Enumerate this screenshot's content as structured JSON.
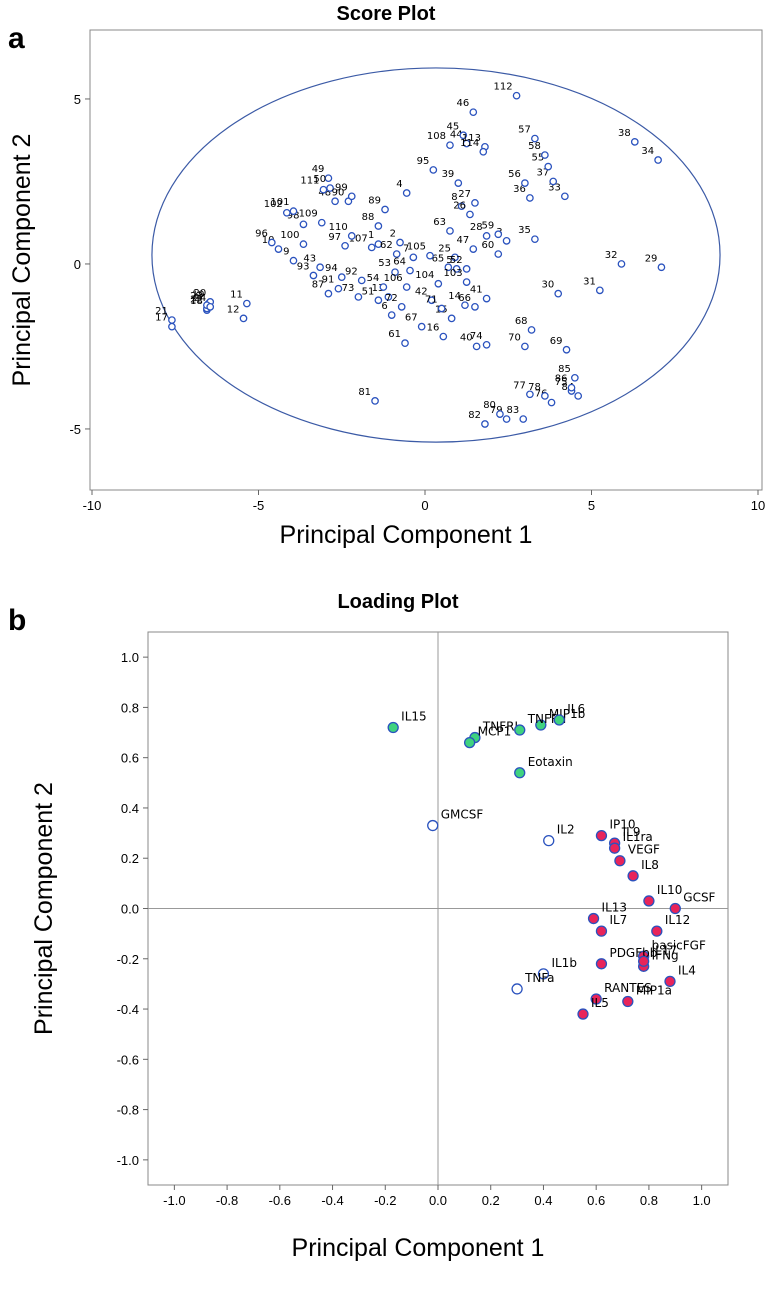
{
  "chart_data": [
    {
      "type": "scatter",
      "panel": "a",
      "title": "Score Plot",
      "xlabel": "Principal Component 1",
      "ylabel": "Principal Component 2",
      "xlim": [
        -10.06,
        10.12
      ],
      "ylim": [
        -6.85,
        7.09
      ],
      "xticks": [
        -10,
        -5,
        0,
        5,
        10
      ],
      "yticks": [
        -5,
        0,
        5
      ],
      "ellipse": {
        "cx": 0.33,
        "cy": 0.27,
        "rx": 8.53,
        "ry": 5.67,
        "color": "#3b5aa6"
      },
      "series": [
        {
          "color": "#2a52be",
          "fill": "#ffffff",
          "labels": [
            "1",
            "2",
            "3",
            "4",
            "5",
            "6",
            "7",
            "8",
            "9",
            "10",
            "11",
            "12",
            "13",
            "14",
            "15",
            "16",
            "17",
            "18",
            "19",
            "20",
            "21",
            "22",
            "23",
            "24",
            "25",
            "26",
            "27",
            "28",
            "29",
            "30",
            "31",
            "32",
            "33",
            "34",
            "35",
            "36",
            "37",
            "38",
            "39",
            "40",
            "41",
            "42",
            "43",
            "44",
            "45",
            "46",
            "47",
            "48",
            "49",
            "50",
            "51",
            "52",
            "53",
            "54",
            "55",
            "56",
            "57",
            "58",
            "59",
            "60",
            "61",
            "62",
            "63",
            "64",
            "65",
            "66",
            "67",
            "68",
            "69",
            "70",
            "71",
            "72",
            "73",
            "74",
            "75",
            "76",
            "77",
            "78",
            "79",
            "80",
            "81",
            "82",
            "83",
            "84",
            "85",
            "86",
            "87",
            "88",
            "89",
            "90",
            "91",
            "92",
            "93",
            "94",
            "95",
            "96",
            "97",
            "98",
            "99",
            "100",
            "101",
            "102",
            "103",
            "104",
            "105",
            "106",
            "107",
            "108",
            "109",
            "110",
            "111",
            "112",
            "113",
            "114"
          ],
          "x": [
            -1.4,
            -0.75,
            2.45,
            -0.55,
            0.95,
            -1.0,
            -0.35,
            1.1,
            -3.95,
            -4.4,
            -5.35,
            -5.45,
            -1.1,
            1.2,
            0.8,
            0.55,
            -7.6,
            -6.55,
            -6.5,
            -6.45,
            -7.6,
            -6.55,
            -6.55,
            -6.45,
            0.9,
            1.35,
            1.5,
            1.85,
            7.1,
            4.0,
            5.25,
            5.9,
            4.2,
            7.0,
            3.3,
            3.15,
            3.85,
            6.3,
            1.0,
            1.55,
            1.85,
            0.2,
            -3.15,
            1.25,
            1.15,
            1.45,
            1.45,
            -2.7,
            -2.9,
            -2.85,
            -1.4,
            1.25,
            -0.9,
            -1.25,
            3.7,
            3.0,
            3.3,
            3.6,
            2.2,
            2.2,
            -0.6,
            -0.85,
            0.75,
            -0.45,
            0.7,
            1.5,
            -0.1,
            3.2,
            4.25,
            3.0,
            0.5,
            -0.7,
            -2.0,
            1.85,
            4.4,
            3.8,
            3.15,
            3.6,
            2.45,
            2.25,
            -1.5,
            1.8,
            2.95,
            4.6,
            4.5,
            4.4,
            -2.9,
            -1.4,
            -1.2,
            -2.3,
            -2.6,
            -1.9,
            -3.35,
            -2.5,
            0.25,
            -4.6,
            -2.4,
            -3.65,
            -2.2,
            -3.65,
            -3.95,
            -4.15,
            1.25,
            0.4,
            0.15,
            -0.55,
            -1.6,
            0.75,
            -3.1,
            -2.2,
            -3.05,
            2.75,
            1.8,
            1.75
          ],
          "y": [
            0.6,
            0.65,
            0.7,
            2.15,
            -0.15,
            -1.55,
            0.2,
            1.75,
            0.1,
            0.45,
            -1.2,
            -1.65,
            -1.0,
            -1.25,
            -1.65,
            -2.2,
            -1.9,
            -1.4,
            -1.2,
            -1.15,
            -1.7,
            -1.35,
            -1.25,
            -1.3,
            0.2,
            1.5,
            1.85,
            0.85,
            -0.1,
            -0.9,
            -0.8,
            0.0,
            2.05,
            3.15,
            0.75,
            2.0,
            2.5,
            3.7,
            2.45,
            -2.5,
            -1.05,
            -1.1,
            -0.1,
            3.65,
            3.9,
            4.6,
            0.45,
            1.9,
            2.6,
            2.3,
            -1.1,
            -0.15,
            -0.25,
            -0.7,
            2.95,
            2.45,
            3.8,
            3.3,
            0.9,
            0.3,
            -2.4,
            0.3,
            1.0,
            -0.2,
            -0.1,
            -1.3,
            -1.9,
            -2.0,
            -2.6,
            -2.5,
            -1.35,
            -1.3,
            -1.0,
            -2.45,
            -3.85,
            -4.2,
            -3.95,
            -4.0,
            -4.7,
            -4.55,
            -4.15,
            -4.85,
            -4.7,
            -4.0,
            -3.45,
            -3.75,
            -0.9,
            1.15,
            1.65,
            1.9,
            -0.75,
            -0.5,
            -0.35,
            -0.4,
            2.85,
            0.65,
            0.55,
            1.2,
            2.05,
            0.6,
            1.6,
            1.55,
            -0.55,
            -0.6,
            0.25,
            -0.7,
            0.5,
            3.6,
            1.25,
            0.85,
            2.25,
            5.1,
            3.55,
            3.4
          ]
        }
      ]
    },
    {
      "type": "scatter",
      "panel": "b",
      "title": "Loading Plot",
      "xlabel": "Principal Component 1",
      "ylabel": "Principal Component 2",
      "xlim": [
        -1.1,
        1.1
      ],
      "ylim": [
        -1.1,
        1.1
      ],
      "zero_lines": true,
      "xticks": [
        {
          "value": -1,
          "label": "-1.0"
        },
        -0.8,
        -0.6,
        -0.4,
        -0.2,
        {
          "value": 0,
          "label": "0.0"
        },
        0.2,
        0.4,
        0.6,
        0.8,
        {
          "value": 1,
          "label": "1.0"
        }
      ],
      "yticks": [
        {
          "value": -1,
          "label": "-1.0"
        },
        -0.8,
        -0.6,
        -0.4,
        -0.2,
        {
          "value": 0,
          "label": "0.0"
        },
        0.2,
        0.4,
        0.6,
        0.8,
        {
          "value": 1,
          "label": "1.0"
        }
      ],
      "series": [
        {
          "color": "#2a52be",
          "fill": "#3fd27f",
          "labels": [
            "IL15",
            "TNFRI",
            "MCP1",
            "MIP1b",
            "TNFRII",
            "IL6",
            "Eotaxin"
          ],
          "x": [
            -0.17,
            0.14,
            0.12,
            0.39,
            0.31,
            0.46,
            0.31
          ],
          "y": [
            0.72,
            0.68,
            0.66,
            0.73,
            0.71,
            0.75,
            0.54
          ]
        },
        {
          "color": "#2a52be",
          "fill": "#ffffff",
          "labels": [
            "GMCSF",
            "IL2",
            "IL1b",
            "TNFa"
          ],
          "x": [
            -0.02,
            0.42,
            0.4,
            0.3
          ],
          "y": [
            0.33,
            0.27,
            -0.26,
            -0.32
          ]
        },
        {
          "color": "#2a52be",
          "fill": "#e8245a",
          "labels": [
            "IP10",
            "IL9",
            "IL1ra",
            "VEGF",
            "IL8",
            "IL10",
            "GCSF",
            "IL13",
            "IL7",
            "IL12",
            "basicFGF",
            "PDGFbb",
            "IFNg",
            "IL17",
            "IL4",
            "RANTES",
            "MIP1a",
            "IL5"
          ],
          "x": [
            0.62,
            0.67,
            0.67,
            0.69,
            0.74,
            0.8,
            0.9,
            0.59,
            0.62,
            0.83,
            0.78,
            0.62,
            0.78,
            0.78,
            0.88,
            0.6,
            0.72,
            0.55
          ],
          "y": [
            0.29,
            0.26,
            0.24,
            0.19,
            0.13,
            0.03,
            0.0,
            -0.04,
            -0.09,
            -0.09,
            -0.19,
            -0.22,
            -0.23,
            -0.21,
            -0.29,
            -0.36,
            -0.37,
            -0.42
          ]
        }
      ]
    }
  ]
}
